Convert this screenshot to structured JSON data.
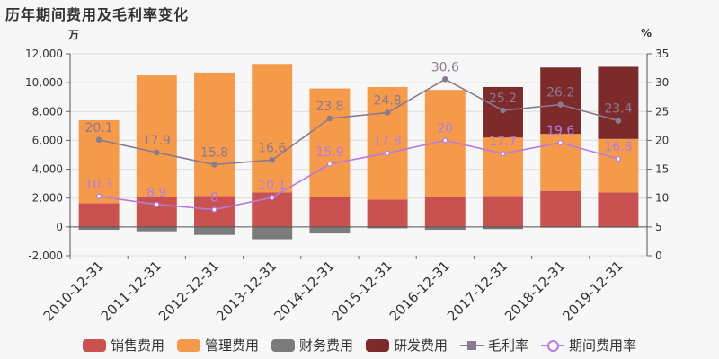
{
  "title": "历年期间费用及毛利率变化",
  "left_unit": "万",
  "right_unit": "%",
  "chart_data": {
    "type": "bar",
    "stacked": true,
    "categories": [
      "2010-12-31",
      "2011-12-31",
      "2012-12-31",
      "2013-12-31",
      "2014-12-31",
      "2015-12-31",
      "2016-12-31",
      "2017-12-31",
      "2018-12-31",
      "2019-12-31"
    ],
    "series": [
      {
        "name": "销售费用",
        "type": "bar",
        "axis": "left",
        "color": "#c95250",
        "values": [
          1650,
          2050,
          2150,
          2400,
          2050,
          1900,
          2100,
          2150,
          2500,
          2400
        ]
      },
      {
        "name": "管理费用",
        "type": "bar",
        "axis": "left",
        "color": "#f59a4a",
        "values": [
          5750,
          8450,
          8550,
          8900,
          7550,
          7800,
          7400,
          4050,
          3950,
          3700
        ]
      },
      {
        "name": "财务费用",
        "type": "bar",
        "axis": "left",
        "color": "#7b7b7b",
        "values": [
          -200,
          -300,
          -550,
          -850,
          -450,
          -100,
          -200,
          -150,
          -50,
          -50
        ]
      },
      {
        "name": "研发费用",
        "type": "bar",
        "axis": "left",
        "color": "#7d2a2b",
        "values": [
          0,
          0,
          0,
          0,
          0,
          0,
          0,
          3500,
          4600,
          5000
        ]
      },
      {
        "name": "毛利率",
        "type": "line",
        "axis": "right",
        "color": "#8a7a8e",
        "values": [
          20.1,
          17.9,
          15.8,
          16.6,
          23.8,
          24.8,
          30.6,
          25.2,
          26.2,
          23.4
        ],
        "labels": [
          "20.1",
          "17.9",
          "15.8",
          "16.6",
          "23.8",
          "24.8",
          "30.6",
          "25.2",
          "26.2",
          "23.4"
        ]
      },
      {
        "name": "期间费用率",
        "type": "line",
        "axis": "right",
        "color": "#b57be0",
        "values": [
          10.3,
          8.9,
          8,
          10.1,
          15.9,
          17.8,
          20,
          17.7,
          19.6,
          16.8
        ],
        "labels": [
          "10.3",
          "8.9",
          "8",
          "10.1",
          "15.9",
          "17.8",
          "20",
          "17.7",
          "19.6",
          "16.8"
        ]
      }
    ],
    "y_left": {
      "min": -2000,
      "max": 12000,
      "ticks": [
        "-2,000",
        "0",
        "2,000",
        "4,000",
        "6,000",
        "8,000",
        "10,000",
        "12,000"
      ],
      "tick_values": [
        -2000,
        0,
        2000,
        4000,
        6000,
        8000,
        10000,
        12000
      ]
    },
    "y_right": {
      "min": 0,
      "max": 35,
      "ticks": [
        "0",
        "5",
        "10",
        "15",
        "20",
        "25",
        "30",
        "35"
      ],
      "tick_values": [
        0,
        5,
        10,
        15,
        20,
        25,
        30,
        35
      ]
    },
    "grid": true,
    "legend_position": "bottom"
  }
}
